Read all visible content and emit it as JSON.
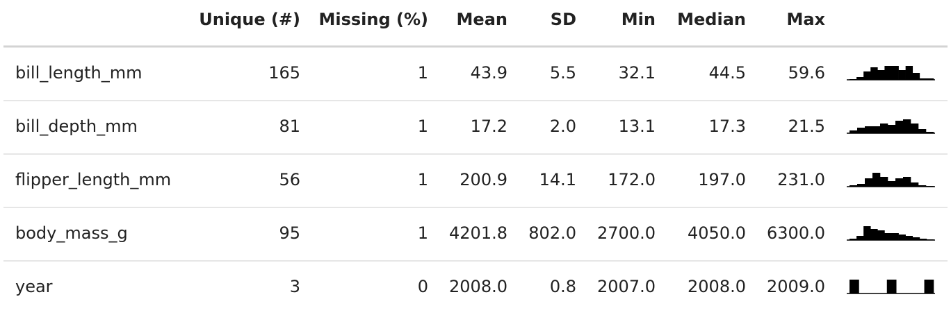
{
  "table": {
    "columns": [
      "Unique (#)",
      "Missing (%)",
      "Mean",
      "SD",
      "Min",
      "Median",
      "Max"
    ],
    "rows": [
      {
        "label": "bill_length_mm",
        "cells": [
          "165",
          "1",
          "43.9",
          "5.5",
          "32.1",
          "44.5",
          "59.6"
        ],
        "histogram": [
          0.5,
          2,
          6,
          9,
          7,
          10,
          10,
          7,
          10,
          5,
          1,
          1
        ]
      },
      {
        "label": "bill_depth_mm",
        "cells": [
          "81",
          "1",
          "17.2",
          "2.0",
          "13.1",
          "17.3",
          "21.5"
        ],
        "histogram": [
          2,
          4,
          5,
          5,
          7,
          6,
          9,
          10,
          7,
          3,
          1
        ]
      },
      {
        "label": "flipper_length_mm",
        "cells": [
          "56",
          "1",
          "200.9",
          "14.1",
          "172.0",
          "197.0",
          "231.0"
        ],
        "histogram": [
          1,
          2,
          6,
          10,
          7,
          4,
          6,
          7,
          3,
          1,
          0.5
        ]
      },
      {
        "label": "body_mass_g",
        "cells": [
          "95",
          "1",
          "4201.8",
          "802.0",
          "2700.0",
          "4050.0",
          "6300.0"
        ],
        "histogram": [
          1,
          3,
          10,
          8,
          7,
          5,
          5,
          4,
          3,
          2,
          1,
          0.5
        ]
      },
      {
        "label": "year",
        "cells": [
          "3",
          "0",
          "2008.0",
          "0.8",
          "2007.0",
          "2008.0",
          "2009.0"
        ],
        "histogram": [
          10,
          0,
          0,
          0,
          10,
          0,
          0,
          0,
          10
        ]
      }
    ]
  }
}
